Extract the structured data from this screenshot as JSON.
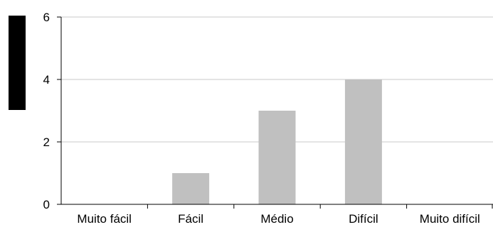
{
  "chart_data": {
    "type": "bar",
    "title": "",
    "xlabel": "",
    "ylabel": "",
    "categories": [
      "Muito fácil",
      "Fácil",
      "Médio",
      "Difícil",
      "Muito difícil"
    ],
    "values": [
      0,
      1,
      3,
      4,
      0
    ],
    "ylim": [
      0,
      6
    ],
    "yticks": [
      "0",
      "2",
      "4",
      "6"
    ],
    "grid": true,
    "legend": "none",
    "colors": {
      "bar": "#c0c0c0",
      "gridline": "#c8c8c8",
      "axis": "#000000",
      "legend_block": "#000000"
    }
  }
}
